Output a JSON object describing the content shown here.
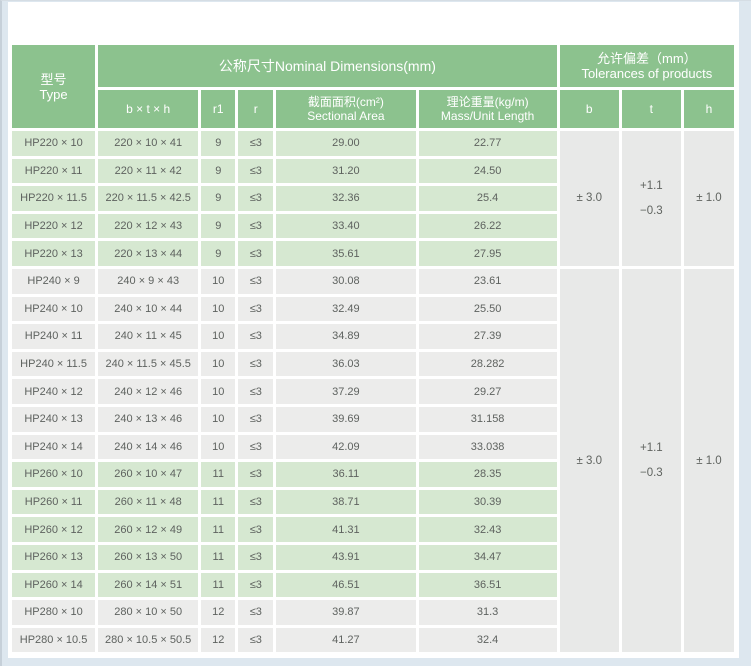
{
  "colors": {
    "header_green": "#8cc28e",
    "row_green": "#d6e8d1",
    "row_gray": "#ececeb",
    "tolerance_gray": "#e8e9e8",
    "header_text": "#ffffff",
    "body_text": "#5e625f",
    "page_background": "#ffffff",
    "page_edge": "#dde7ef"
  },
  "table": {
    "header": {
      "type_zh": "型号",
      "type_en": "Type",
      "nominal": "公称尺寸Nominal Dimensions(mm)",
      "tolerance_zh": "允许偏差（mm）",
      "tolerance_en": "Tolerances of products"
    },
    "subheader": {
      "btx": "b × t × h",
      "r1": "r1",
      "r": "r",
      "area_zh": "截面面积(cm²)",
      "area_en": "Sectional Area",
      "mass_zh": "理论重量(kg/m)",
      "mass_en": "Mass/Unit Length",
      "b": "b",
      "t": "t",
      "h": "h"
    },
    "rows": [
      {
        "type": "HP220 × 10",
        "btx": "220 × 10 × 41",
        "r1": "9",
        "r": "≤3",
        "area": "29.00",
        "mass": "22.77",
        "shade": "green"
      },
      {
        "type": "HP220 × 11",
        "btx": "220 × 11 × 42",
        "r1": "9",
        "r": "≤3",
        "area": "31.20",
        "mass": "24.50",
        "shade": "green"
      },
      {
        "type": "HP220 × 11.5",
        "btx": "220 × 11.5 × 42.5",
        "r1": "9",
        "r": "≤3",
        "area": "32.36",
        "mass": "25.4",
        "shade": "green"
      },
      {
        "type": "HP220 × 12",
        "btx": "220 × 12 × 43",
        "r1": "9",
        "r": "≤3",
        "area": "33.40",
        "mass": "26.22",
        "shade": "green"
      },
      {
        "type": "HP220 × 13",
        "btx": "220 × 13 × 44",
        "r1": "9",
        "r": "≤3",
        "area": "35.61",
        "mass": "27.95",
        "shade": "green"
      },
      {
        "type": "HP240 × 9",
        "btx": "240 × 9 × 43",
        "r1": "10",
        "r": "≤3",
        "area": "30.08",
        "mass": "23.61",
        "shade": "gray"
      },
      {
        "type": "HP240 × 10",
        "btx": "240 × 10 × 44",
        "r1": "10",
        "r": "≤3",
        "area": "32.49",
        "mass": "25.50",
        "shade": "gray"
      },
      {
        "type": "HP240 × 11",
        "btx": "240 × 11 × 45",
        "r1": "10",
        "r": "≤3",
        "area": "34.89",
        "mass": "27.39",
        "shade": "gray"
      },
      {
        "type": "HP240 × 11.5",
        "btx": "240 × 11.5 × 45.5",
        "r1": "10",
        "r": "≤3",
        "area": "36.03",
        "mass": "28.282",
        "shade": "gray"
      },
      {
        "type": "HP240 × 12",
        "btx": "240 × 12 × 46",
        "r1": "10",
        "r": "≤3",
        "area": "37.29",
        "mass": "29.27",
        "shade": "gray"
      },
      {
        "type": "HP240 × 13",
        "btx": "240 × 13 × 46",
        "r1": "10",
        "r": "≤3",
        "area": "39.69",
        "mass": "31.158",
        "shade": "gray"
      },
      {
        "type": "HP240 × 14",
        "btx": "240 × 14 × 46",
        "r1": "10",
        "r": "≤3",
        "area": "42.09",
        "mass": "33.038",
        "shade": "gray"
      },
      {
        "type": "HP260 × 10",
        "btx": "260 × 10 × 47",
        "r1": "11",
        "r": "≤3",
        "area": "36.11",
        "mass": "28.35",
        "shade": "green"
      },
      {
        "type": "HP260 × 11",
        "btx": "260 × 11 × 48",
        "r1": "11",
        "r": "≤3",
        "area": "38.71",
        "mass": "30.39",
        "shade": "green"
      },
      {
        "type": "HP260 × 12",
        "btx": "260 × 12 × 49",
        "r1": "11",
        "r": "≤3",
        "area": "41.31",
        "mass": "32.43",
        "shade": "green"
      },
      {
        "type": "HP260 × 13",
        "btx": "260 × 13 × 50",
        "r1": "11",
        "r": "≤3",
        "area": "43.91",
        "mass": "34.47",
        "shade": "green"
      },
      {
        "type": "HP260 × 14",
        "btx": "260 × 14 × 51",
        "r1": "11",
        "r": "≤3",
        "area": "46.51",
        "mass": "36.51",
        "shade": "green"
      },
      {
        "type": "HP280 × 10",
        "btx": "280 × 10 × 50",
        "r1": "12",
        "r": "≤3",
        "area": "39.87",
        "mass": "31.3",
        "shade": "gray"
      },
      {
        "type": "HP280 × 10.5",
        "btx": "280 × 10.5 × 50.5",
        "r1": "12",
        "r": "≤3",
        "area": "41.27",
        "mass": "32.4",
        "shade": "gray"
      }
    ],
    "tolerance_blocks": [
      {
        "span": 5,
        "b": "± 3.0",
        "t_plus": "+1.1",
        "t_minus": "−0.3",
        "h": "± 1.0"
      },
      {
        "span": 14,
        "b": "± 3.0",
        "t_plus": "+1.1",
        "t_minus": "−0.3",
        "h": "± 1.0"
      }
    ]
  }
}
